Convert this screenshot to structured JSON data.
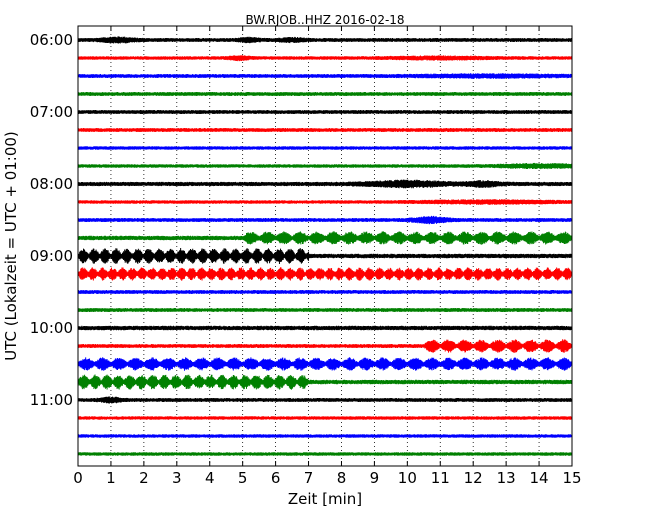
{
  "chart_data": {
    "type": "line",
    "title": "BW.RJOB..HHZ 2016-02-18",
    "xlabel": "Zeit  [min]",
    "ylabel": "UTC (Lokalzeit = UTC + 01:00)",
    "xlim": [
      0,
      15
    ],
    "x_ticks": [
      "0",
      "1",
      "2",
      "3",
      "4",
      "5",
      "6",
      "7",
      "8",
      "9",
      "10",
      "11",
      "12",
      "13",
      "14",
      "15"
    ],
    "y_tick_labels": [
      "06:00",
      "07:00",
      "08:00",
      "09:00",
      "10:00",
      "11:00"
    ],
    "grid": true,
    "trace_colors": [
      "#000000",
      "#ff0000",
      "#0000ff",
      "#008000"
    ],
    "traces": [
      {
        "start": "06:00",
        "amp": 0.22,
        "events": [
          {
            "c": 1.2,
            "w": 0.5,
            "a": 0.2
          },
          {
            "c": 5.2,
            "w": 0.3,
            "a": 0.15
          },
          {
            "c": 6.5,
            "w": 0.4,
            "a": 0.15
          }
        ]
      },
      {
        "start": "06:15",
        "amp": 0.2,
        "events": [
          {
            "c": 4.9,
            "w": 0.3,
            "a": 0.15
          },
          {
            "c": 11,
            "w": 1.5,
            "a": 0.1
          }
        ]
      },
      {
        "start": "06:30",
        "amp": 0.22,
        "events": [
          {
            "c": 12.5,
            "w": 2,
            "a": 0.1
          }
        ]
      },
      {
        "start": "06:45",
        "amp": 0.22,
        "events": []
      },
      {
        "start": "07:00",
        "amp": 0.22,
        "events": []
      },
      {
        "start": "07:15",
        "amp": 0.22,
        "events": []
      },
      {
        "start": "07:30",
        "amp": 0.2,
        "events": []
      },
      {
        "start": "07:45",
        "amp": 0.2,
        "events": [
          {
            "c": 14,
            "w": 1.2,
            "a": 0.15
          }
        ]
      },
      {
        "start": "08:00",
        "amp": 0.24,
        "events": [
          {
            "c": 10,
            "w": 1.2,
            "a": 0.25
          },
          {
            "c": 12.3,
            "w": 0.5,
            "a": 0.2
          }
        ]
      },
      {
        "start": "08:15",
        "amp": 0.2,
        "events": [
          {
            "c": 12.5,
            "w": 2,
            "a": 0.12
          }
        ]
      },
      {
        "start": "08:30",
        "amp": 0.22,
        "events": [
          {
            "c": 10.7,
            "w": 0.5,
            "a": 0.25
          }
        ]
      },
      {
        "start": "08:45",
        "amp": 0.25,
        "beat": {
          "from": 5,
          "to": 15,
          "a": 0.5,
          "p": 0.5
        }
      },
      {
        "start": "09:00",
        "amp": 0.25,
        "beat": {
          "from": 0,
          "to": 7,
          "a": 0.65,
          "p": 0.33
        }
      },
      {
        "start": "09:15",
        "amp": 0.25,
        "beat": {
          "from": 0,
          "to": 15,
          "a": 0.5,
          "p": 0.3
        }
      },
      {
        "start": "09:30",
        "amp": 0.22,
        "events": []
      },
      {
        "start": "09:45",
        "amp": 0.22,
        "events": []
      },
      {
        "start": "10:00",
        "amp": 0.25,
        "events": []
      },
      {
        "start": "10:15",
        "amp": 0.22,
        "beat": {
          "from": 10.5,
          "to": 15,
          "a": 0.55,
          "p": 0.5
        }
      },
      {
        "start": "10:30",
        "amp": 0.25,
        "beat": {
          "from": 0,
          "to": 15,
          "a": 0.5,
          "p": 0.5
        }
      },
      {
        "start": "10:45",
        "amp": 0.25,
        "beat": {
          "from": 0,
          "to": 7,
          "a": 0.6,
          "p": 0.35
        }
      },
      {
        "start": "11:00",
        "amp": 0.22,
        "events": [
          {
            "c": 1,
            "w": 0.3,
            "a": 0.2
          }
        ]
      },
      {
        "start": "11:15",
        "amp": 0.2,
        "events": []
      },
      {
        "start": "11:30",
        "amp": 0.2,
        "events": []
      },
      {
        "start": "11:45",
        "amp": 0.2,
        "events": []
      }
    ]
  }
}
